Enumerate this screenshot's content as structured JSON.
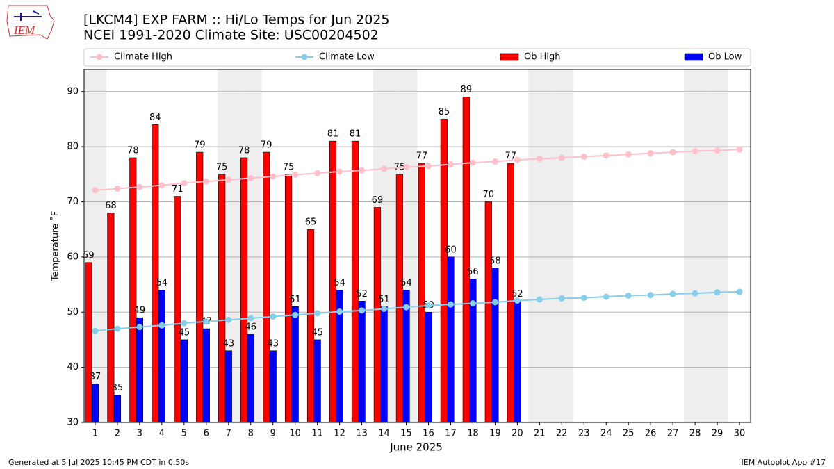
{
  "chart_data": {
    "type": "bar",
    "logo_text": "IEM",
    "title": "[LKCM4] EXP FARM :: Hi/Lo Temps for Jun 2025",
    "subtitle": "NCEI 1991-2020 Climate Site: USC00204502",
    "x_label": "June 2025",
    "y_label": "Temperature ˚F",
    "footer_left": "Generated at 5 Jul 2025 10:45 PM CDT in 0.50s",
    "footer_right": "IEM Autoplot App #17",
    "x": [
      1,
      2,
      3,
      4,
      5,
      6,
      7,
      8,
      9,
      10,
      11,
      12,
      13,
      14,
      15,
      16,
      17,
      18,
      19,
      20,
      21,
      22,
      23,
      24,
      25,
      26,
      27,
      28,
      29,
      30
    ],
    "xlim": [
      0.5,
      30.5
    ],
    "ylim": [
      30,
      94
    ],
    "yticks": [
      30,
      40,
      50,
      60,
      70,
      80,
      90
    ],
    "grid": true,
    "legend": "top",
    "shaded_days": [
      1,
      7,
      8,
      14,
      15,
      21,
      22,
      28,
      29
    ],
    "shade_color": "#eeeeee",
    "series": [
      {
        "name": "Climate High",
        "kind": "line",
        "color": "#ffc0cb",
        "values": [
          72.1,
          72.4,
          72.7,
          73.0,
          73.4,
          73.7,
          74.0,
          74.3,
          74.6,
          74.9,
          75.2,
          75.5,
          75.7,
          76.0,
          76.3,
          76.5,
          76.8,
          77.1,
          77.3,
          77.6,
          77.8,
          78.0,
          78.2,
          78.4,
          78.6,
          78.8,
          79.0,
          79.2,
          79.3,
          79.5
        ]
      },
      {
        "name": "Climate Low",
        "kind": "line",
        "color": "#87ceeb",
        "values": [
          46.6,
          47.0,
          47.3,
          47.6,
          48.0,
          48.3,
          48.6,
          48.9,
          49.2,
          49.5,
          49.8,
          50.1,
          50.3,
          50.6,
          50.9,
          51.2,
          51.4,
          51.6,
          51.8,
          52.1,
          52.3,
          52.5,
          52.6,
          52.8,
          53.0,
          53.1,
          53.3,
          53.4,
          53.6,
          53.7
        ]
      },
      {
        "name": "Ob High",
        "kind": "bar",
        "color": "#ff0000",
        "values": [
          59,
          68,
          78,
          84,
          71,
          79,
          75,
          78,
          79,
          75,
          65,
          81,
          81,
          69,
          75,
          77,
          85,
          89,
          70,
          77,
          null,
          null,
          null,
          null,
          null,
          null,
          null,
          null,
          null,
          null
        ]
      },
      {
        "name": "Ob Low",
        "kind": "bar",
        "color": "#0000ff",
        "values": [
          37,
          35,
          49,
          54,
          45,
          47,
          43,
          46,
          43,
          51,
          45,
          54,
          52,
          51,
          54,
          50,
          60,
          56,
          58,
          52,
          null,
          null,
          null,
          null,
          null,
          null,
          null,
          null,
          null,
          null
        ]
      }
    ]
  }
}
